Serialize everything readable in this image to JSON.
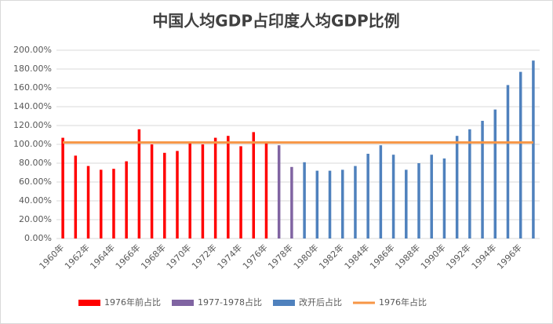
{
  "chart_data": {
    "type": "bar",
    "title": "中国人均GDP占印度人均GDP比例",
    "categories": [
      "1960年",
      null,
      "1962年",
      null,
      "1964年",
      null,
      "1966年",
      null,
      "1968年",
      null,
      "1970年",
      null,
      "1972年",
      null,
      "1974年",
      null,
      "1976年",
      null,
      "1978年",
      null,
      "1980年",
      null,
      "1982年",
      null,
      "1984年",
      null,
      "1986年",
      null,
      "1988年",
      null,
      "1990年",
      null,
      "1992年",
      null,
      "1994年",
      null,
      "1996年",
      null
    ],
    "series": [
      {
        "name": "1976年前占比",
        "color": "#ff0000",
        "values": [
          107,
          88,
          77,
          73,
          74,
          82,
          116,
          100,
          91,
          93,
          101,
          100,
          107,
          109,
          98,
          113,
          102,
          null,
          null,
          null,
          null,
          null,
          null,
          null,
          null,
          null,
          null,
          null,
          null,
          null,
          null,
          null,
          null,
          null,
          null,
          null,
          null,
          null
        ]
      },
      {
        "name": "1977-1978占比",
        "color": "#8064a2",
        "values": [
          null,
          null,
          null,
          null,
          null,
          null,
          null,
          null,
          null,
          null,
          null,
          null,
          null,
          null,
          null,
          null,
          null,
          99,
          76,
          null,
          null,
          null,
          null,
          null,
          null,
          null,
          null,
          null,
          null,
          null,
          null,
          null,
          null,
          null,
          null,
          null,
          null,
          null
        ]
      },
      {
        "name": "改开后占比",
        "color": "#4f81bd",
        "values": [
          null,
          null,
          null,
          null,
          null,
          null,
          null,
          null,
          null,
          null,
          null,
          null,
          null,
          null,
          null,
          null,
          null,
          null,
          null,
          81,
          72,
          72,
          73,
          77,
          90,
          99,
          89,
          73,
          80,
          89,
          85,
          109,
          116,
          125,
          137,
          163,
          177,
          189
        ]
      },
      {
        "name": "1976年占比",
        "color": "#f79646",
        "type": "line",
        "values": [
          102,
          102,
          102,
          102,
          102,
          102,
          102,
          102,
          102,
          102,
          102,
          102,
          102,
          102,
          102,
          102,
          102,
          102,
          102,
          102,
          102,
          102,
          102,
          102,
          102,
          102,
          102,
          102,
          102,
          102,
          102,
          102,
          102,
          102,
          102,
          102,
          102,
          102
        ]
      }
    ],
    "ylim": [
      0,
      200
    ],
    "yticks": [
      {
        "value": 0,
        "label": "0.00%"
      },
      {
        "value": 20,
        "label": "20.00%"
      },
      {
        "value": 40,
        "label": "40.00%"
      },
      {
        "value": 60,
        "label": "60.00%"
      },
      {
        "value": 80,
        "label": "80.00%"
      },
      {
        "value": 100,
        "label": "100.00%"
      },
      {
        "value": 120,
        "label": "120.00%"
      },
      {
        "value": 140,
        "label": "140.00%"
      },
      {
        "value": 160,
        "label": "160.00%"
      },
      {
        "value": 180,
        "label": "180.00%"
      },
      {
        "value": 200,
        "label": "200.00%"
      }
    ],
    "grid": true,
    "legend": "bottom"
  }
}
